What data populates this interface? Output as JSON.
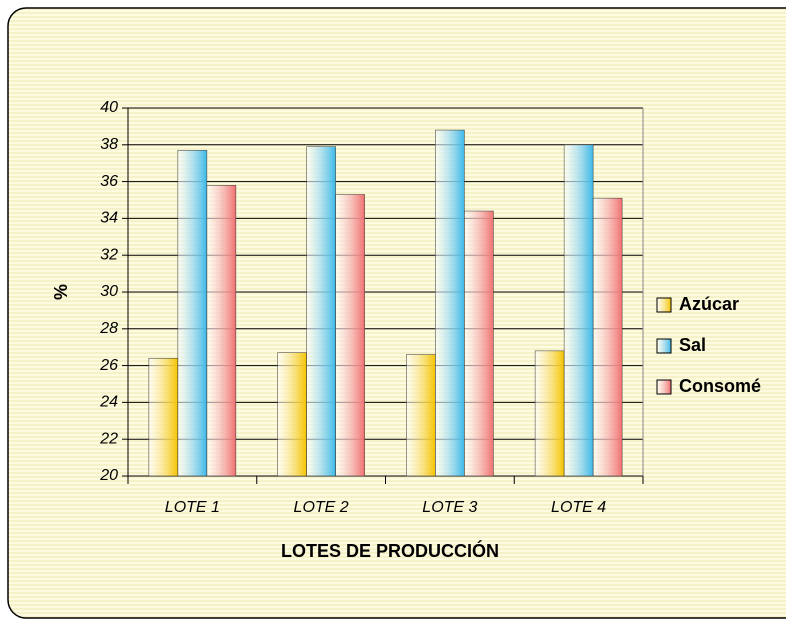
{
  "chart_data": {
    "type": "bar",
    "y_label": "%",
    "x_label": "LOTES DE PRODUCCIÓN",
    "categories": [
      "LOTE 1",
      "LOTE 2",
      "LOTE 3",
      "LOTE 4"
    ],
    "series": [
      {
        "name": "Azúcar",
        "color": "#f5c400",
        "values": [
          26.4,
          26.7,
          26.6,
          26.8
        ]
      },
      {
        "name": "Sal",
        "color": "#3cb8e8",
        "values": [
          37.7,
          37.9,
          38.8,
          38.0
        ]
      },
      {
        "name": "Consomé",
        "color": "#f07070",
        "values": [
          35.8,
          35.3,
          34.4,
          35.1
        ]
      }
    ],
    "ylim": [
      20,
      40
    ],
    "yticks": [
      20,
      22,
      24,
      26,
      28,
      30,
      32,
      34,
      36,
      38,
      40
    ],
    "grid": true,
    "legend": "right"
  }
}
